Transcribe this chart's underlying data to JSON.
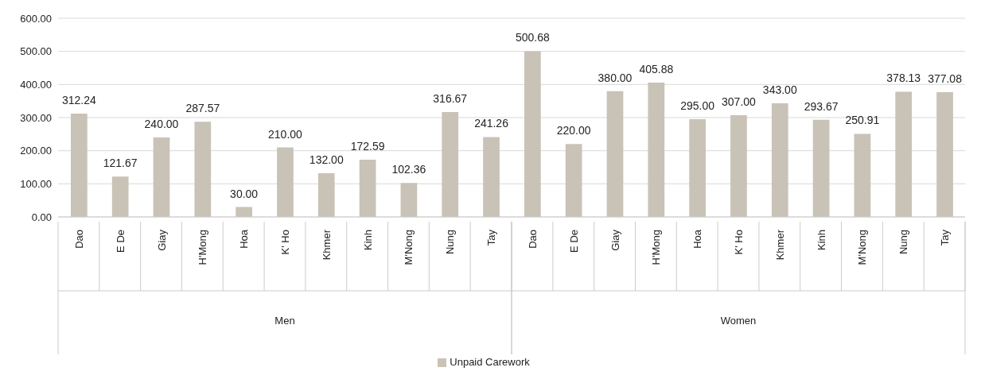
{
  "chart_data": {
    "type": "bar",
    "categories": [
      "Dao",
      "E De",
      "Giay",
      "H'Mong",
      "Hoa",
      "K' Ho",
      "Khmer",
      "Kinh",
      "M'Nong",
      "Nung",
      "Tay",
      "Dao",
      "E De",
      "Giay",
      "H'Mong",
      "Hoa",
      "K' Ho",
      "Khmer",
      "Kinh",
      "M'Nong",
      "Nung",
      "Tay"
    ],
    "series": [
      {
        "name": "Unpaid Carework",
        "color": "#c9c2b6",
        "values": [
          312.24,
          121.67,
          240.0,
          287.57,
          30.0,
          210.0,
          132.0,
          172.59,
          102.36,
          316.67,
          241.26,
          500.68,
          220.0,
          380.0,
          405.88,
          295.0,
          307.0,
          343.0,
          293.67,
          250.91,
          378.13,
          377.08
        ],
        "value_labels": [
          "312.24",
          "121.67",
          "240.00",
          "287.57",
          "30.00",
          "210.00",
          "132.00",
          "172.59",
          "102.36",
          "316.67",
          "241.26",
          "500.68",
          "220.00",
          "380.00",
          "405.88",
          "295.00",
          "307.00",
          "343.00",
          "293.67",
          "250.91",
          "378.13",
          "377.08"
        ]
      }
    ],
    "annotations": [
      "Men",
      "Women"
    ],
    "ylim": [
      0,
      600
    ],
    "yticks": [
      {
        "value": 0,
        "label": "0.00"
      },
      {
        "value": 100,
        "label": "100.00"
      },
      {
        "value": 200,
        "label": "200.00"
      },
      {
        "value": 300,
        "label": "300.00"
      },
      {
        "value": 400,
        "label": "400.00"
      },
      {
        "value": 500,
        "label": "500.00"
      },
      {
        "value": 600,
        "label": "600.00"
      }
    ],
    "grid": "y",
    "legend": "bottom"
  }
}
